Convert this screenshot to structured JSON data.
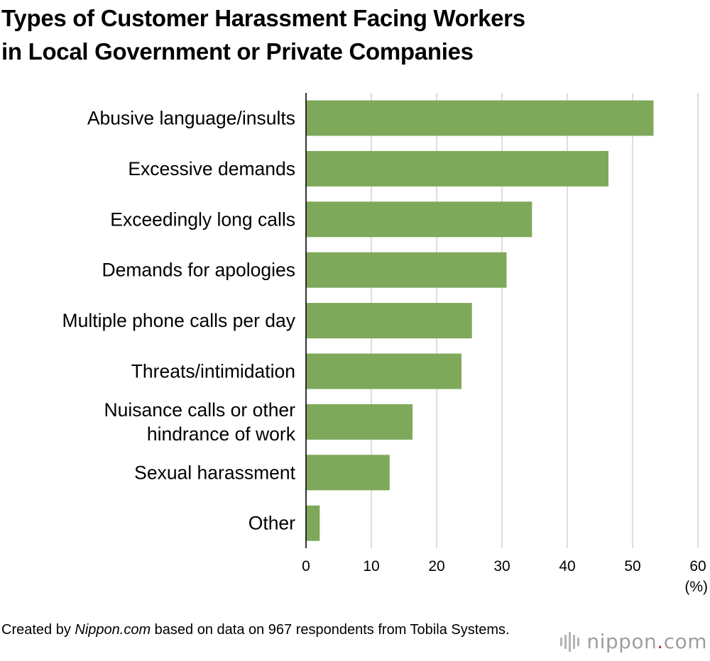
{
  "chart_data": {
    "type": "bar",
    "orientation": "horizontal",
    "title": "Types of Customer Harassment Facing Workers\nin Local Government or Private Companies",
    "categories": [
      "Abusive language/insults",
      "Excessive demands",
      "Exceedingly long calls",
      "Demands for apologies",
      "Multiple phone calls per day",
      "Threats/intimidation",
      "Nuisance calls or other\nhindrance of work",
      "Sexual harassment",
      "Other"
    ],
    "values": [
      53.2,
      46.3,
      34.6,
      30.7,
      25.4,
      23.8,
      16.3,
      12.8,
      2.1
    ],
    "xlim": [
      0,
      60
    ],
    "xticks": [
      0,
      10,
      20,
      30,
      40,
      50,
      60
    ],
    "xunit": "(%)",
    "grid": true,
    "bar_color": "#7ea85a",
    "grid_color": "#d0d0d0"
  },
  "footer": {
    "source_prefix": "Created by ",
    "source_site": "Nippon.com",
    "source_suffix": " based on data on 967 respondents from Tobila Systems."
  },
  "brand": {
    "name_main": "nippon",
    "name_dot": ".",
    "name_tld": "com",
    "dot_color": "#cc2229"
  }
}
